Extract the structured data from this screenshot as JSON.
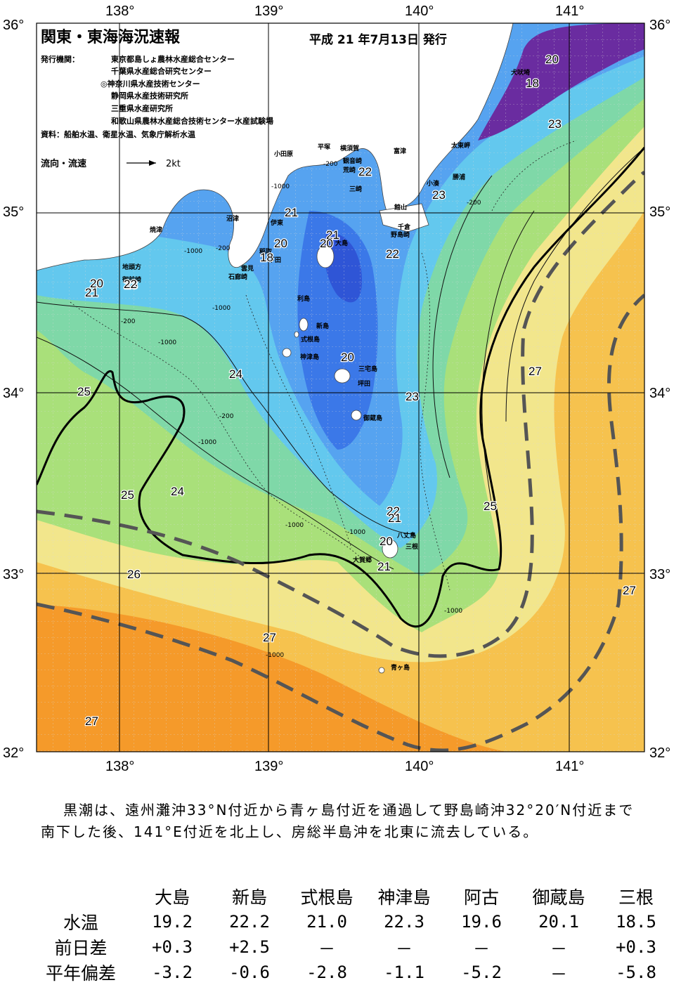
{
  "header": {
    "title": "関東・東海海況速報",
    "issue_date": "平成 21 年7月13日 発行",
    "agencies_label": "発行機関：",
    "agencies": [
      "東京都島しょ農林水産総合センター",
      "千葉県水産総合研究センター",
      "◎神奈川県水産技術センター",
      "静岡県水産技術研究所",
      "三重県水産研究所",
      "和歌山県農林水産総合技術センター水産試験場"
    ],
    "sources": "資料：船舶水温、衛星水温、気象庁解析水温",
    "current_legend_label": "流向・流速",
    "current_legend_value": "2kt"
  },
  "axes": {
    "top_longitudes": [
      "138°",
      "139°",
      "140°",
      "141°"
    ],
    "bottom_longitudes": [
      "138°",
      "139°",
      "140°",
      "141°"
    ],
    "left_latitudes": [
      "36°",
      "35°",
      "34°",
      "33°",
      "32°"
    ],
    "right_latitudes": [
      "36°",
      "35°",
      "34°",
      "33°",
      "32°"
    ]
  },
  "place_labels": [
    "犬吠埼",
    "太東岬",
    "勝浦",
    "小湊",
    "館山",
    "千倉",
    "野島崎",
    "富津",
    "横須賀",
    "観音崎",
    "荒崎",
    "三崎",
    "平塚",
    "小田原",
    "沼津",
    "伊東",
    "稲取",
    "下田",
    "雲見",
    "石廊崎",
    "焼津",
    "地頭方",
    "御前崎",
    "大島",
    "利島",
    "新島",
    "式根島",
    "神津島",
    "三宅島",
    "坪田",
    "御蔵島",
    "八丈島",
    "三根",
    "大賀郷",
    "青ヶ島"
  ],
  "isotherm_labels": [
    "20",
    "18",
    "23",
    "22",
    "23",
    "21",
    "21",
    "20",
    "20",
    "18",
    "22",
    "23",
    "20",
    "21",
    "22",
    "24",
    "20",
    "23",
    "25",
    "24",
    "25",
    "22",
    "21",
    "20",
    "21",
    "25",
    "26",
    "27",
    "27",
    "27",
    "27"
  ],
  "depth_labels": [
    "-200",
    "-1000",
    "-200",
    "-1000",
    "-200",
    "-1000",
    "-200",
    "-1000",
    "-1000",
    "-1000",
    "-1000",
    "-200",
    "-1000",
    "-1000"
  ],
  "summary": "黒潮は、遠州灘沖33°N付近から青ヶ島付近を通過して野島崎沖32°20′N付近まで南下した後、141°E付近を北上し、房総半島沖を北東に流去している。",
  "table": {
    "columns": [
      "大島",
      "新島",
      "式根島",
      "神津島",
      "阿古",
      "御蔵島",
      "三根"
    ],
    "rows": [
      {
        "label": "水温",
        "values": [
          "19.2",
          "22.2",
          "21.0",
          "22.3",
          "19.6",
          "20.1",
          "18.5"
        ]
      },
      {
        "label": "前日差",
        "values": [
          "+0.3",
          "+2.5",
          "－",
          "－",
          "－",
          "－",
          "+0.3"
        ]
      },
      {
        "label": "平年偏差",
        "values": [
          "-3.2",
          "-0.6",
          "-2.8",
          "-1.1",
          "-5.2",
          "－",
          "-5.8"
        ]
      }
    ]
  },
  "colors": {
    "t18": "#6a2ca0",
    "t20": "#2f55d6",
    "t21": "#3b78e8",
    "t22": "#56a3f0",
    "t23": "#63c8ee",
    "t24": "#7fd8a8",
    "t25": "#a9e07a",
    "t26": "#f2e68c",
    "t27": "#f6c24e",
    "t28": "#f59a2a",
    "land": "#ffffff",
    "kuroshio": "#555555"
  }
}
